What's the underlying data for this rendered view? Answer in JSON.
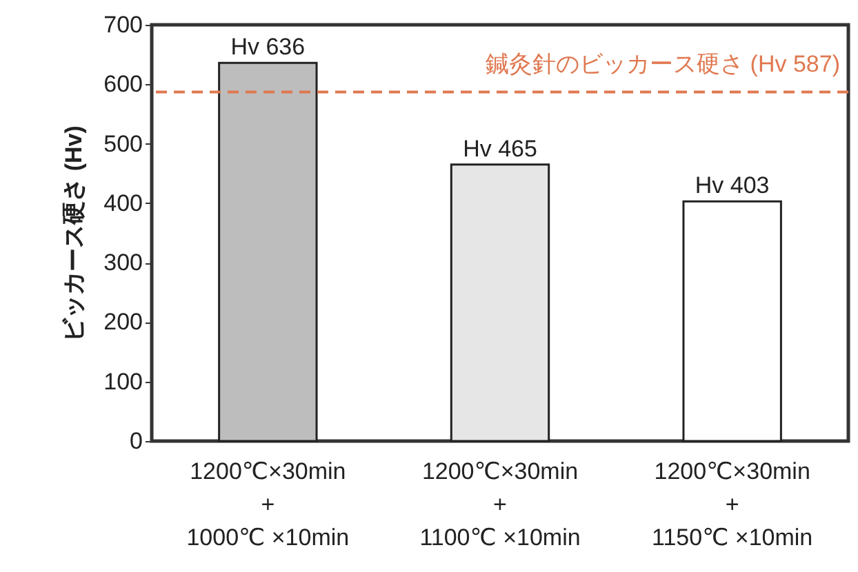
{
  "chart_data": {
    "type": "bar",
    "ylabel": "ビッカース硬さ (Hv)",
    "categories": [
      "1200℃×30min\n+\n1000℃ ×10min",
      "1200℃×30min\n+\n1100℃ ×10min",
      "1200℃×30min\n+\n1150℃ ×10min"
    ],
    "values": [
      636,
      465,
      403
    ],
    "colors": [
      "#bdbdbd",
      "#e6e6e6",
      "#ffffff"
    ],
    "value_labels": [
      "Hv 636",
      "Hv 465",
      "Hv 403"
    ],
    "ylim": [
      0,
      700
    ],
    "yticks": [
      0,
      100,
      200,
      300,
      400,
      500,
      600,
      700
    ],
    "grid": false,
    "ref_lines": [
      {
        "axis": "y",
        "value": 587,
        "label": "鍼灸針のビッカース硬さ (Hv 587)",
        "color": "#e07850",
        "line_style": "dashed"
      }
    ]
  }
}
